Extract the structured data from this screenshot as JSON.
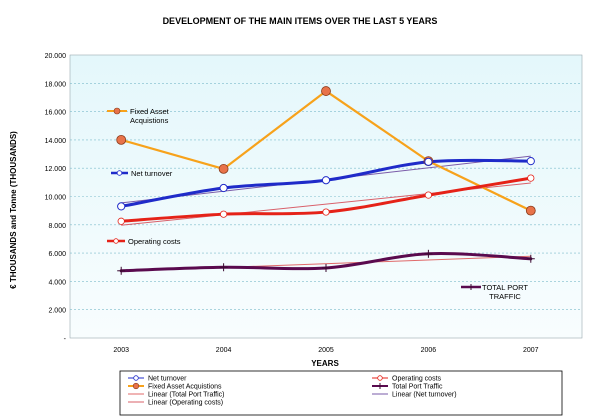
{
  "chart_data": {
    "type": "line",
    "title": "DEVELOPMENT OF THE MAIN ITEMS OVER THE LAST 5 YEARS",
    "xlabel": "YEARS",
    "ylabel": "€ THOUSANDS and Tonne (THOUSANDS)",
    "categories": [
      "2003",
      "2004",
      "2005",
      "2006",
      "2007"
    ],
    "ylim": [
      0,
      20000
    ],
    "y_ticks": [
      {
        "value": 0,
        "label": "-"
      },
      {
        "value": 2000,
        "label": "2.000"
      },
      {
        "value": 4000,
        "label": "4.000"
      },
      {
        "value": 6000,
        "label": "6.000"
      },
      {
        "value": 8000,
        "label": "8.000"
      },
      {
        "value": 10000,
        "label": "10.000"
      },
      {
        "value": 12000,
        "label": "12.000"
      },
      {
        "value": 14000,
        "label": "14.000"
      },
      {
        "value": 16000,
        "label": "16.000"
      },
      {
        "value": 18000,
        "label": "18.000"
      },
      {
        "value": 20000,
        "label": "20.000"
      }
    ],
    "series": [
      {
        "key": "fixed",
        "name": "Fixed Asset Acquistions",
        "color": "#F7A21B",
        "values": [
          14000,
          11950,
          17450,
          12500,
          9000
        ]
      },
      {
        "key": "turnover",
        "name": "Net turnover",
        "color": "#1F2BC9",
        "values": [
          9300,
          10600,
          11150,
          12450,
          12500
        ]
      },
      {
        "key": "opcost",
        "name": "Operating costs",
        "color": "#E52218",
        "values": [
          8250,
          8750,
          8900,
          10100,
          11300
        ]
      },
      {
        "key": "traffic",
        "name": "Total Port Traffic",
        "color": "#5A0A4E",
        "values": [
          4750,
          5000,
          4950,
          5950,
          5600
        ]
      }
    ],
    "trendlines": [
      {
        "key": "traffic",
        "name": "Linear (Total Port Traffic)",
        "color": "#E06A6A"
      },
      {
        "key": "turnover",
        "name": "Linear (Net turnover)",
        "color": "#7A5BA8"
      },
      {
        "key": "opcost",
        "name": "Linear (Operating costs)",
        "color": "#D9606A"
      }
    ],
    "annotations": [
      {
        "key": "fixed",
        "text": [
          "Fixed Asset",
          "Acquistions"
        ]
      },
      {
        "key": "turnover",
        "text": [
          "Net turnover"
        ]
      },
      {
        "key": "opcost",
        "text": [
          "Operating costs"
        ]
      },
      {
        "key": "traffic",
        "text": [
          "TOTAL PORT",
          "TRAFFIC"
        ]
      }
    ],
    "grid": true,
    "legend_position": "bottom"
  }
}
